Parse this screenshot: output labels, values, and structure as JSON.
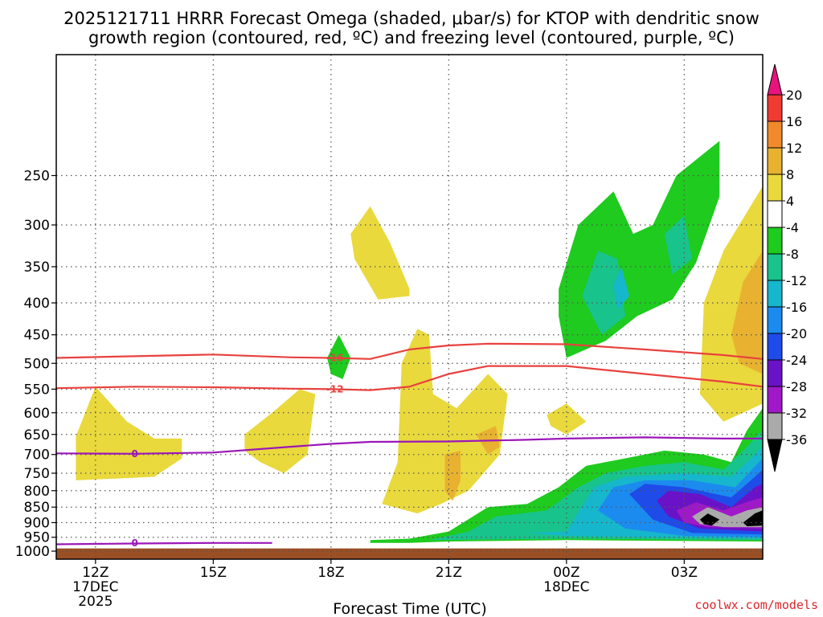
{
  "chart_data": {
    "type": "contour",
    "title_lines": [
      "2025121711 HRRR Forecast Omega (shaded, μbar/s) for KTOP with dendritic snow",
      "growth region (contoured, red, ºC) and freezing level (contoured, purple, ºC)"
    ],
    "xlabel": "Forecast Time (UTC)",
    "x_ticks": [
      {
        "hour": 0,
        "lines": [
          "12Z",
          "17DEC",
          "2025"
        ]
      },
      {
        "hour": 3,
        "lines": [
          "15Z"
        ]
      },
      {
        "hour": 6,
        "lines": [
          "18Z"
        ]
      },
      {
        "hour": 9,
        "lines": [
          "21Z"
        ]
      },
      {
        "hour": 12,
        "lines": [
          "00Z",
          "18DEC"
        ]
      },
      {
        "hour": 15,
        "lines": [
          "03Z"
        ]
      }
    ],
    "x_range_hours": [
      -1,
      17
    ],
    "y_ticks": [
      250,
      300,
      350,
      400,
      450,
      500,
      550,
      600,
      650,
      700,
      750,
      800,
      850,
      900,
      950,
      1000
    ],
    "y_range_hpa": [
      160,
      1030
    ],
    "ground_level_hpa": 990,
    "colorbar": {
      "labels": [
        "20",
        "16",
        "12",
        "8",
        "4",
        "-4",
        "-8",
        "-12",
        "-16",
        "-20",
        "-24",
        "-28",
        "-32",
        "-36"
      ],
      "colors": [
        "#e8137c",
        "#f03a32",
        "#f08a2a",
        "#e8b230",
        "#e9d93c",
        "#ffffff",
        "#1ecb1e",
        "#19c38c",
        "#16b6cc",
        "#1c8bef",
        "#1f4be8",
        "#6a12c8",
        "#a019c8",
        "#aaaaaa",
        "#000000"
      ]
    },
    "contour_lines": [
      {
        "label": "-16",
        "color": "#e8413e",
        "points": [
          [
            -1,
            490
          ],
          [
            1,
            487
          ],
          [
            3,
            484
          ],
          [
            5,
            489
          ],
          [
            6,
            490
          ],
          [
            7,
            492
          ],
          [
            8,
            475
          ],
          [
            9,
            468
          ],
          [
            10,
            465
          ],
          [
            12,
            466
          ],
          [
            14,
            475
          ],
          [
            16,
            485
          ],
          [
            17,
            492
          ]
        ],
        "label_at": [
          6.1,
          490
        ]
      },
      {
        "label": "-12",
        "color": "#e8413e",
        "points": [
          [
            -1,
            548
          ],
          [
            1,
            545
          ],
          [
            3,
            546
          ],
          [
            5,
            549
          ],
          [
            6,
            550
          ],
          [
            7,
            552
          ],
          [
            8,
            545
          ],
          [
            9,
            520
          ],
          [
            10,
            505
          ],
          [
            12,
            505
          ],
          [
            14,
            520
          ],
          [
            16,
            535
          ],
          [
            17,
            545
          ]
        ],
        "label_at": [
          6.1,
          550
        ]
      },
      {
        "label": "0",
        "color": "#9b17b8",
        "points": [
          [
            -1,
            697
          ],
          [
            1,
            698
          ],
          [
            3,
            695
          ],
          [
            5,
            680
          ],
          [
            6,
            673
          ],
          [
            7,
            668
          ],
          [
            9,
            667
          ],
          [
            11,
            663
          ],
          [
            12,
            660
          ],
          [
            14,
            657
          ],
          [
            16,
            660
          ],
          [
            17,
            660
          ]
        ],
        "label_at": [
          1,
          698
        ]
      },
      {
        "label": "0",
        "color": "#9b17b8",
        "points": [
          [
            -1,
            975
          ],
          [
            1,
            972
          ],
          [
            3,
            970
          ],
          [
            4.5,
            970
          ]
        ],
        "label_at": [
          1,
          971
        ]
      }
    ],
    "shaded_regions": [
      {
        "value_bin": "4 to 8",
        "color": "#e9d93c",
        "points": [
          [
            -0.5,
            655
          ],
          [
            0,
            545
          ],
          [
            0.8,
            620
          ],
          [
            1.5,
            660
          ],
          [
            2.2,
            660
          ],
          [
            2.2,
            710
          ],
          [
            1.5,
            760
          ],
          [
            0.5,
            765
          ],
          [
            -0.5,
            770
          ]
        ]
      },
      {
        "value_bin": "4 to 8",
        "color": "#e9d93c",
        "points": [
          [
            3.8,
            650
          ],
          [
            4.5,
            600
          ],
          [
            5.2,
            550
          ],
          [
            5.6,
            560
          ],
          [
            5.4,
            700
          ],
          [
            4.8,
            750
          ],
          [
            4.2,
            720
          ],
          [
            3.8,
            690
          ]
        ]
      },
      {
        "value_bin": "4 to 8",
        "color": "#e9d93c",
        "points": [
          [
            6.5,
            310
          ],
          [
            7,
            280
          ],
          [
            7.5,
            320
          ],
          [
            8,
            380
          ],
          [
            8,
            390
          ],
          [
            7.2,
            395
          ],
          [
            6.6,
            340
          ]
        ]
      },
      {
        "value_bin": "4 to 8",
        "color": "#e9d93c",
        "points": [
          [
            7.8,
            500
          ],
          [
            8.2,
            440
          ],
          [
            8.5,
            450
          ],
          [
            8.6,
            560
          ],
          [
            9.2,
            590
          ],
          [
            10,
            520
          ],
          [
            10.5,
            560
          ],
          [
            10.3,
            700
          ],
          [
            9.5,
            800
          ],
          [
            8.8,
            840
          ],
          [
            8.2,
            870
          ],
          [
            7.3,
            840
          ],
          [
            7.7,
            720
          ]
        ]
      },
      {
        "value_bin": "8 to 12",
        "color": "#e8b230",
        "points": [
          [
            8.9,
            700
          ],
          [
            9.3,
            690
          ],
          [
            9.3,
            770
          ],
          [
            9.1,
            830
          ],
          [
            8.9,
            800
          ]
        ]
      },
      {
        "value_bin": "8 to 12",
        "color": "#e8b230",
        "points": [
          [
            9.7,
            650
          ],
          [
            10.2,
            630
          ],
          [
            10.3,
            680
          ],
          [
            10,
            700
          ]
        ]
      },
      {
        "value_bin": "4 to 8",
        "color": "#e9d93c",
        "points": [
          [
            11.5,
            605
          ],
          [
            12,
            580
          ],
          [
            12.5,
            620
          ],
          [
            12,
            650
          ],
          [
            11.6,
            630
          ]
        ]
      },
      {
        "value_bin": "4 to 8",
        "color": "#e9d93c",
        "points": [
          [
            15.5,
            400
          ],
          [
            16,
            330
          ],
          [
            17,
            260
          ],
          [
            17,
            580
          ],
          [
            16.5,
            600
          ],
          [
            16,
            620
          ],
          [
            15.4,
            560
          ]
        ]
      },
      {
        "value_bin": "8 to 12",
        "color": "#e8b230",
        "points": [
          [
            16.2,
            450
          ],
          [
            16.5,
            370
          ],
          [
            17,
            330
          ],
          [
            17,
            520
          ],
          [
            16.4,
            500
          ]
        ]
      },
      {
        "value_bin": "-4 to -8",
        "color": "#1ecb1e",
        "points": [
          [
            11.8,
            380
          ],
          [
            12.3,
            300
          ],
          [
            13.2,
            265
          ],
          [
            13.7,
            310
          ],
          [
            14.2,
            300
          ],
          [
            14.8,
            250
          ],
          [
            15.9,
            220
          ],
          [
            15.9,
            270
          ],
          [
            15.3,
            345
          ],
          [
            14.7,
            395
          ],
          [
            13.8,
            420
          ],
          [
            13,
            460
          ],
          [
            12,
            490
          ],
          [
            11.8,
            420
          ]
        ]
      },
      {
        "value_bin": "-8 to -12",
        "color": "#19c38c",
        "points": [
          [
            12.4,
            390
          ],
          [
            12.8,
            330
          ],
          [
            13.3,
            340
          ],
          [
            13.5,
            420
          ],
          [
            12.9,
            450
          ]
        ]
      },
      {
        "value_bin": "-8 to -12",
        "color": "#19c38c",
        "points": [
          [
            14.5,
            310
          ],
          [
            15,
            290
          ],
          [
            15.2,
            340
          ],
          [
            14.7,
            360
          ]
        ]
      },
      {
        "value_bin": "-12 to -16",
        "color": "#16b6cc",
        "points": [
          [
            13.2,
            375
          ],
          [
            13.4,
            350
          ],
          [
            13.6,
            390
          ],
          [
            13.3,
            410
          ]
        ]
      },
      {
        "value_bin": "-4 to -8",
        "color": "#1ecb1e",
        "points": [
          [
            5.9,
            490
          ],
          [
            6.2,
            450
          ],
          [
            6.5,
            490
          ],
          [
            6.3,
            530
          ],
          [
            6.0,
            520
          ]
        ]
      },
      {
        "value_bin": "-4 to -8",
        "color": "#1ecb1e",
        "points": [
          [
            7,
            960
          ],
          [
            8,
            955
          ],
          [
            9,
            930
          ],
          [
            10,
            850
          ],
          [
            11,
            840
          ],
          [
            11.8,
            790
          ],
          [
            12.5,
            730
          ],
          [
            13.5,
            710
          ],
          [
            14.5,
            690
          ],
          [
            15.5,
            700
          ],
          [
            16.2,
            720
          ],
          [
            16.6,
            640
          ],
          [
            17,
            590
          ],
          [
            17,
            965
          ],
          [
            12,
            960
          ],
          [
            9,
            965
          ],
          [
            8,
            970
          ],
          [
            7,
            970
          ]
        ]
      },
      {
        "value_bin": "-8 to -12",
        "color": "#19c38c",
        "points": [
          [
            8.5,
            960
          ],
          [
            9.5,
            930
          ],
          [
            10.2,
            880
          ],
          [
            11.5,
            860
          ],
          [
            12.3,
            790
          ],
          [
            13,
            750
          ],
          [
            14,
            730
          ],
          [
            15,
            720
          ],
          [
            16,
            740
          ],
          [
            16.4,
            700
          ],
          [
            17,
            640
          ],
          [
            17,
            960
          ],
          [
            12,
            955
          ]
        ]
      },
      {
        "value_bin": "-12 to -16",
        "color": "#16b6cc",
        "points": [
          [
            11,
            935
          ],
          [
            12,
            930
          ],
          [
            12.7,
            790
          ],
          [
            13.5,
            760
          ],
          [
            15,
            750
          ],
          [
            16.2,
            760
          ],
          [
            16.6,
            720
          ],
          [
            17,
            680
          ],
          [
            17,
            955
          ],
          [
            14,
            950
          ],
          [
            12,
            945
          ]
        ]
      },
      {
        "value_bin": "-16 to -20",
        "color": "#1c8bef",
        "points": [
          [
            12.8,
            860
          ],
          [
            13.2,
            790
          ],
          [
            14,
            770
          ],
          [
            15.2,
            770
          ],
          [
            16.3,
            790
          ],
          [
            17,
            710
          ],
          [
            17,
            950
          ],
          [
            15,
            945
          ],
          [
            13.5,
            920
          ]
        ]
      },
      {
        "value_bin": "-20 to -24",
        "color": "#1f4be8",
        "points": [
          [
            13.6,
            810
          ],
          [
            14,
            780
          ],
          [
            15,
            790
          ],
          [
            16.2,
            820
          ],
          [
            16.8,
            760
          ],
          [
            17,
            740
          ],
          [
            17,
            940
          ],
          [
            15.2,
            935
          ],
          [
            14.2,
            890
          ]
        ]
      },
      {
        "value_bin": "-24 to -28",
        "color": "#6a12c8",
        "points": [
          [
            14.3,
            830
          ],
          [
            14.6,
            800
          ],
          [
            15.4,
            810
          ],
          [
            16.2,
            850
          ],
          [
            16.8,
            790
          ],
          [
            17,
            780
          ],
          [
            17,
            930
          ],
          [
            15.4,
            920
          ],
          [
            14.6,
            880
          ]
        ]
      },
      {
        "value_bin": "-28 to -32",
        "color": "#a019c8",
        "points": [
          [
            14.8,
            860
          ],
          [
            15.3,
            835
          ],
          [
            16,
            860
          ],
          [
            16.7,
            830
          ],
          [
            17,
            820
          ],
          [
            17,
            920
          ],
          [
            15.6,
            915
          ],
          [
            15,
            900
          ]
        ]
      },
      {
        "value_bin": "-32 to -36",
        "color": "#aaaaaa",
        "points": [
          [
            15.2,
            880
          ],
          [
            15.6,
            850
          ],
          [
            16.2,
            880
          ],
          [
            16.6,
            860
          ],
          [
            17,
            850
          ],
          [
            17,
            915
          ],
          [
            16,
            915
          ],
          [
            15.4,
            905
          ]
        ]
      },
      {
        "value_bin": "< -36",
        "color": "#000000",
        "points": [
          [
            15.4,
            890
          ],
          [
            15.6,
            870
          ],
          [
            15.9,
            890
          ],
          [
            15.7,
            910
          ],
          [
            15.5,
            905
          ]
        ]
      },
      {
        "value_bin": "< -36",
        "color": "#000000",
        "points": [
          [
            16.5,
            900
          ],
          [
            16.8,
            870
          ],
          [
            17,
            860
          ],
          [
            17,
            910
          ],
          [
            16.6,
            912
          ]
        ]
      }
    ]
  },
  "credit": "coolwx.com/models"
}
